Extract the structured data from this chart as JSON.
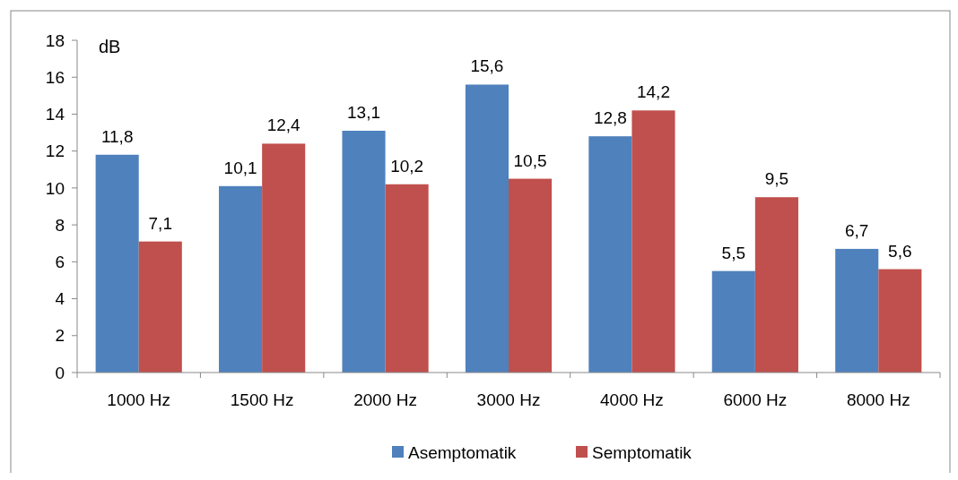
{
  "chart_data": {
    "type": "bar",
    "ylabel": "dB",
    "categories": [
      "1000 Hz",
      "1500 Hz",
      "2000 Hz",
      "3000 Hz",
      "4000 Hz",
      "6000 Hz",
      "8000 Hz"
    ],
    "series": [
      {
        "name": "Asemptomatik",
        "color": "#4f81bd",
        "values": [
          11.8,
          10.1,
          13.1,
          15.6,
          12.8,
          5.5,
          6.7
        ],
        "value_labels": [
          "11,8",
          "10,1",
          "13,1",
          "15,6",
          "12,8",
          "5,5",
          "6,7"
        ]
      },
      {
        "name": "Semptomatik",
        "color": "#c0504d",
        "values": [
          7.1,
          12.4,
          10.2,
          10.5,
          14.2,
          9.5,
          5.6
        ],
        "value_labels": [
          "7,1",
          "12,4",
          "10,2",
          "10,5",
          "14,2",
          "9,5",
          "5,6"
        ]
      }
    ],
    "ylim": [
      0,
      18
    ],
    "yticks": [
      0,
      2,
      4,
      6,
      8,
      10,
      12,
      14,
      16,
      18
    ],
    "grid": false,
    "legend": "bottom"
  }
}
